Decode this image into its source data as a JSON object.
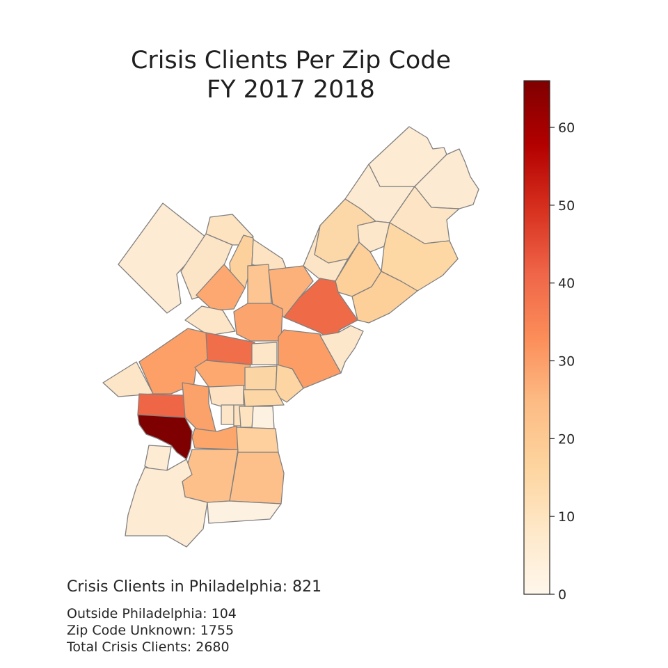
{
  "title_line1": "Crisis Clients Per Zip Code",
  "title_line2": "FY 2017 2018",
  "stats": {
    "philadelphia": "Crisis Clients in Philadelphia: 821",
    "outside": "Outside Philadelphia: 104",
    "unknown": "Zip Code Unknown: 1755",
    "total": "Total Crisis Clients: 2680"
  },
  "colorbar": {
    "min": 0,
    "max": 66,
    "ticks": [
      0,
      10,
      20,
      30,
      40,
      50,
      60
    ],
    "colormap": "OrRd"
  },
  "colors": {
    "border": "#808080",
    "low": "#fff7ec",
    "high": "#7f0000"
  }
}
